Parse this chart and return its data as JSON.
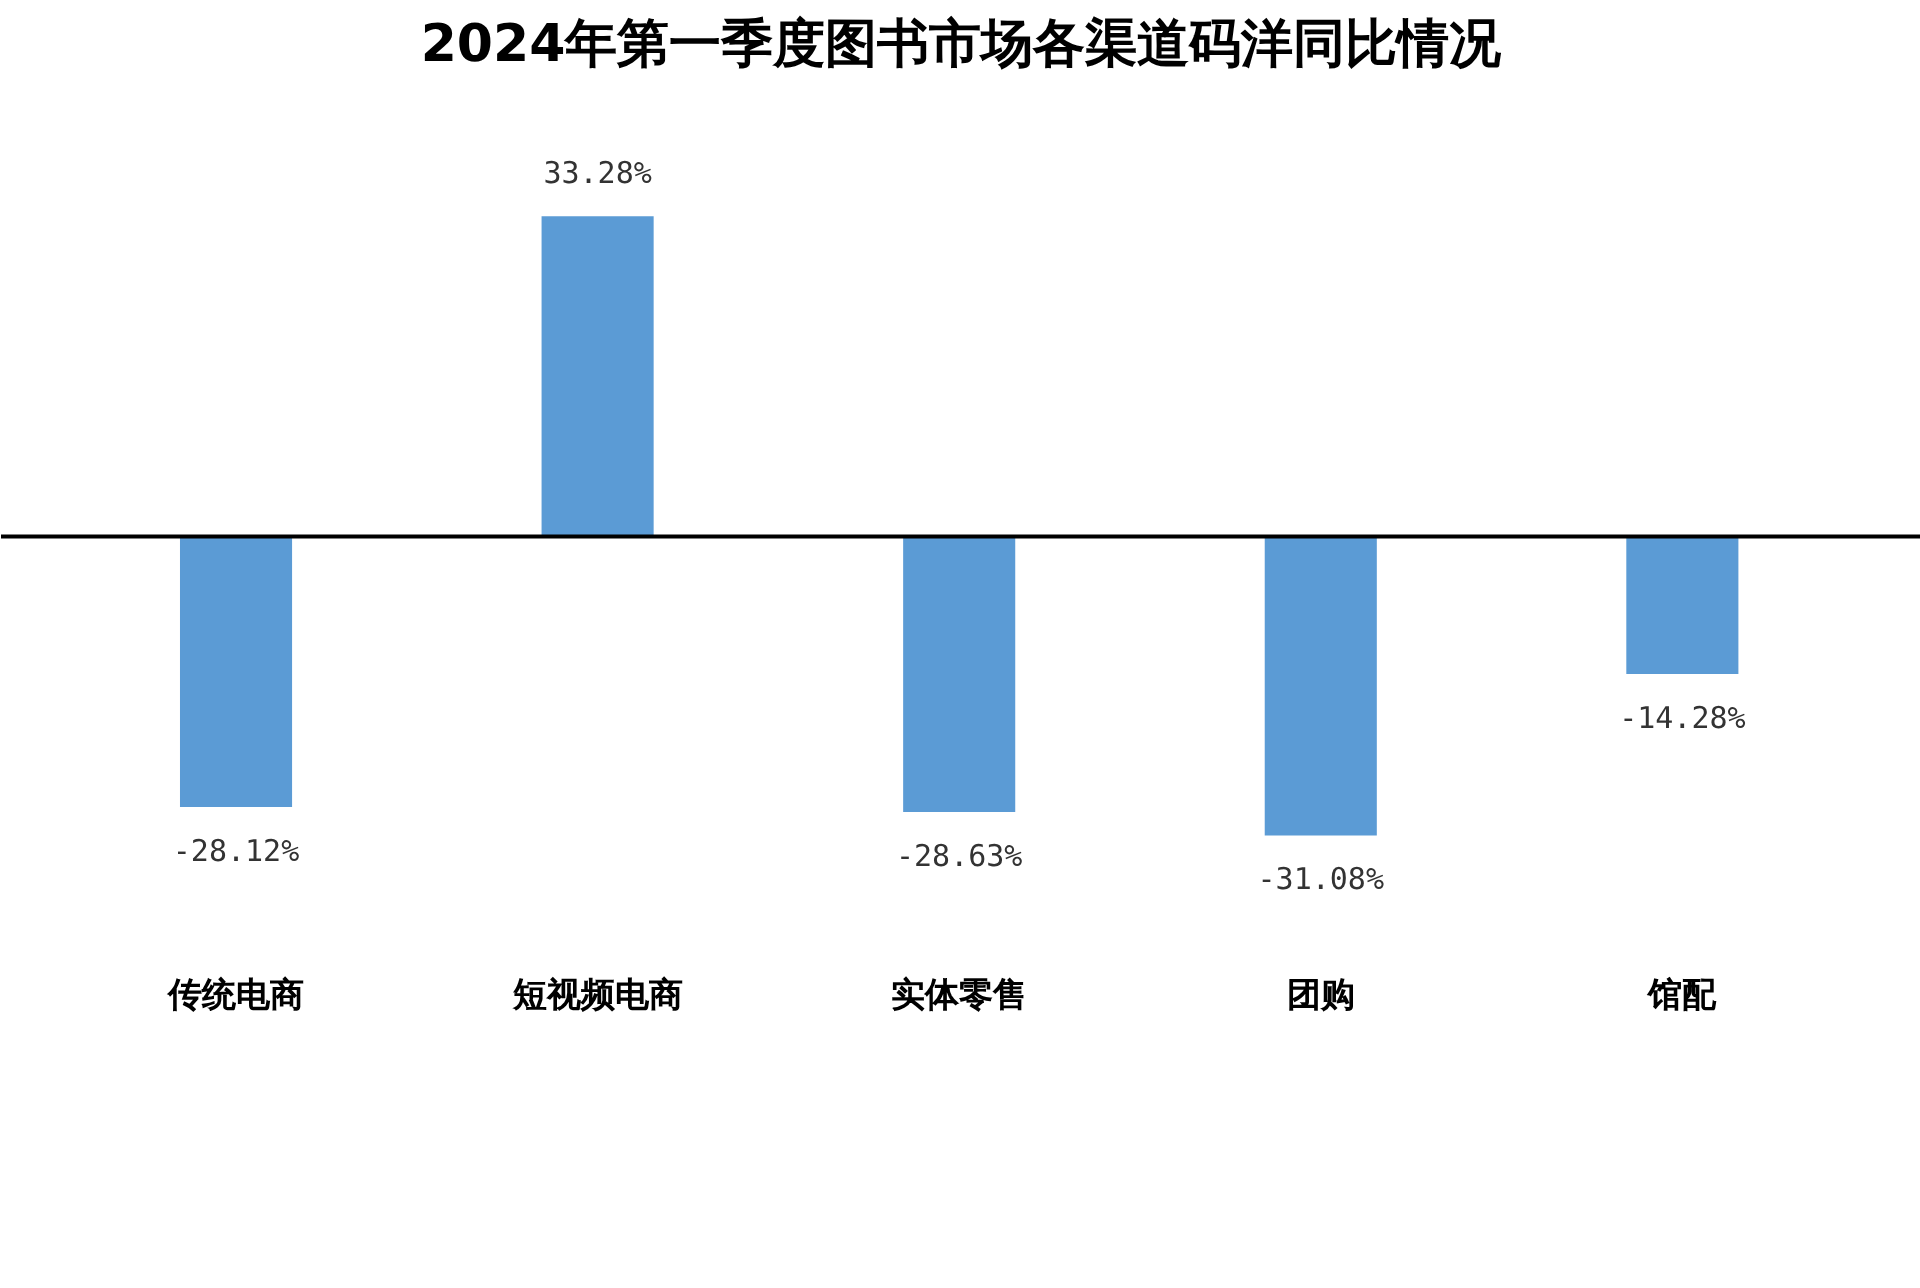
{
  "chart_data": {
    "type": "bar",
    "title": "2024年第一季度图书市场各渠道码洋同比情况",
    "categories": [
      "传统电商",
      "短视频电商",
      "实体零售",
      "团购",
      "馆配"
    ],
    "values": [
      -28.12,
      33.28,
      -28.63,
      -31.08,
      -14.28
    ],
    "color": "#5b9bd5",
    "value_labels": [
      "-28.12%",
      "33.28%",
      "-28.63%",
      "-31.08%",
      "-14.28%"
    ],
    "grid": false
  }
}
